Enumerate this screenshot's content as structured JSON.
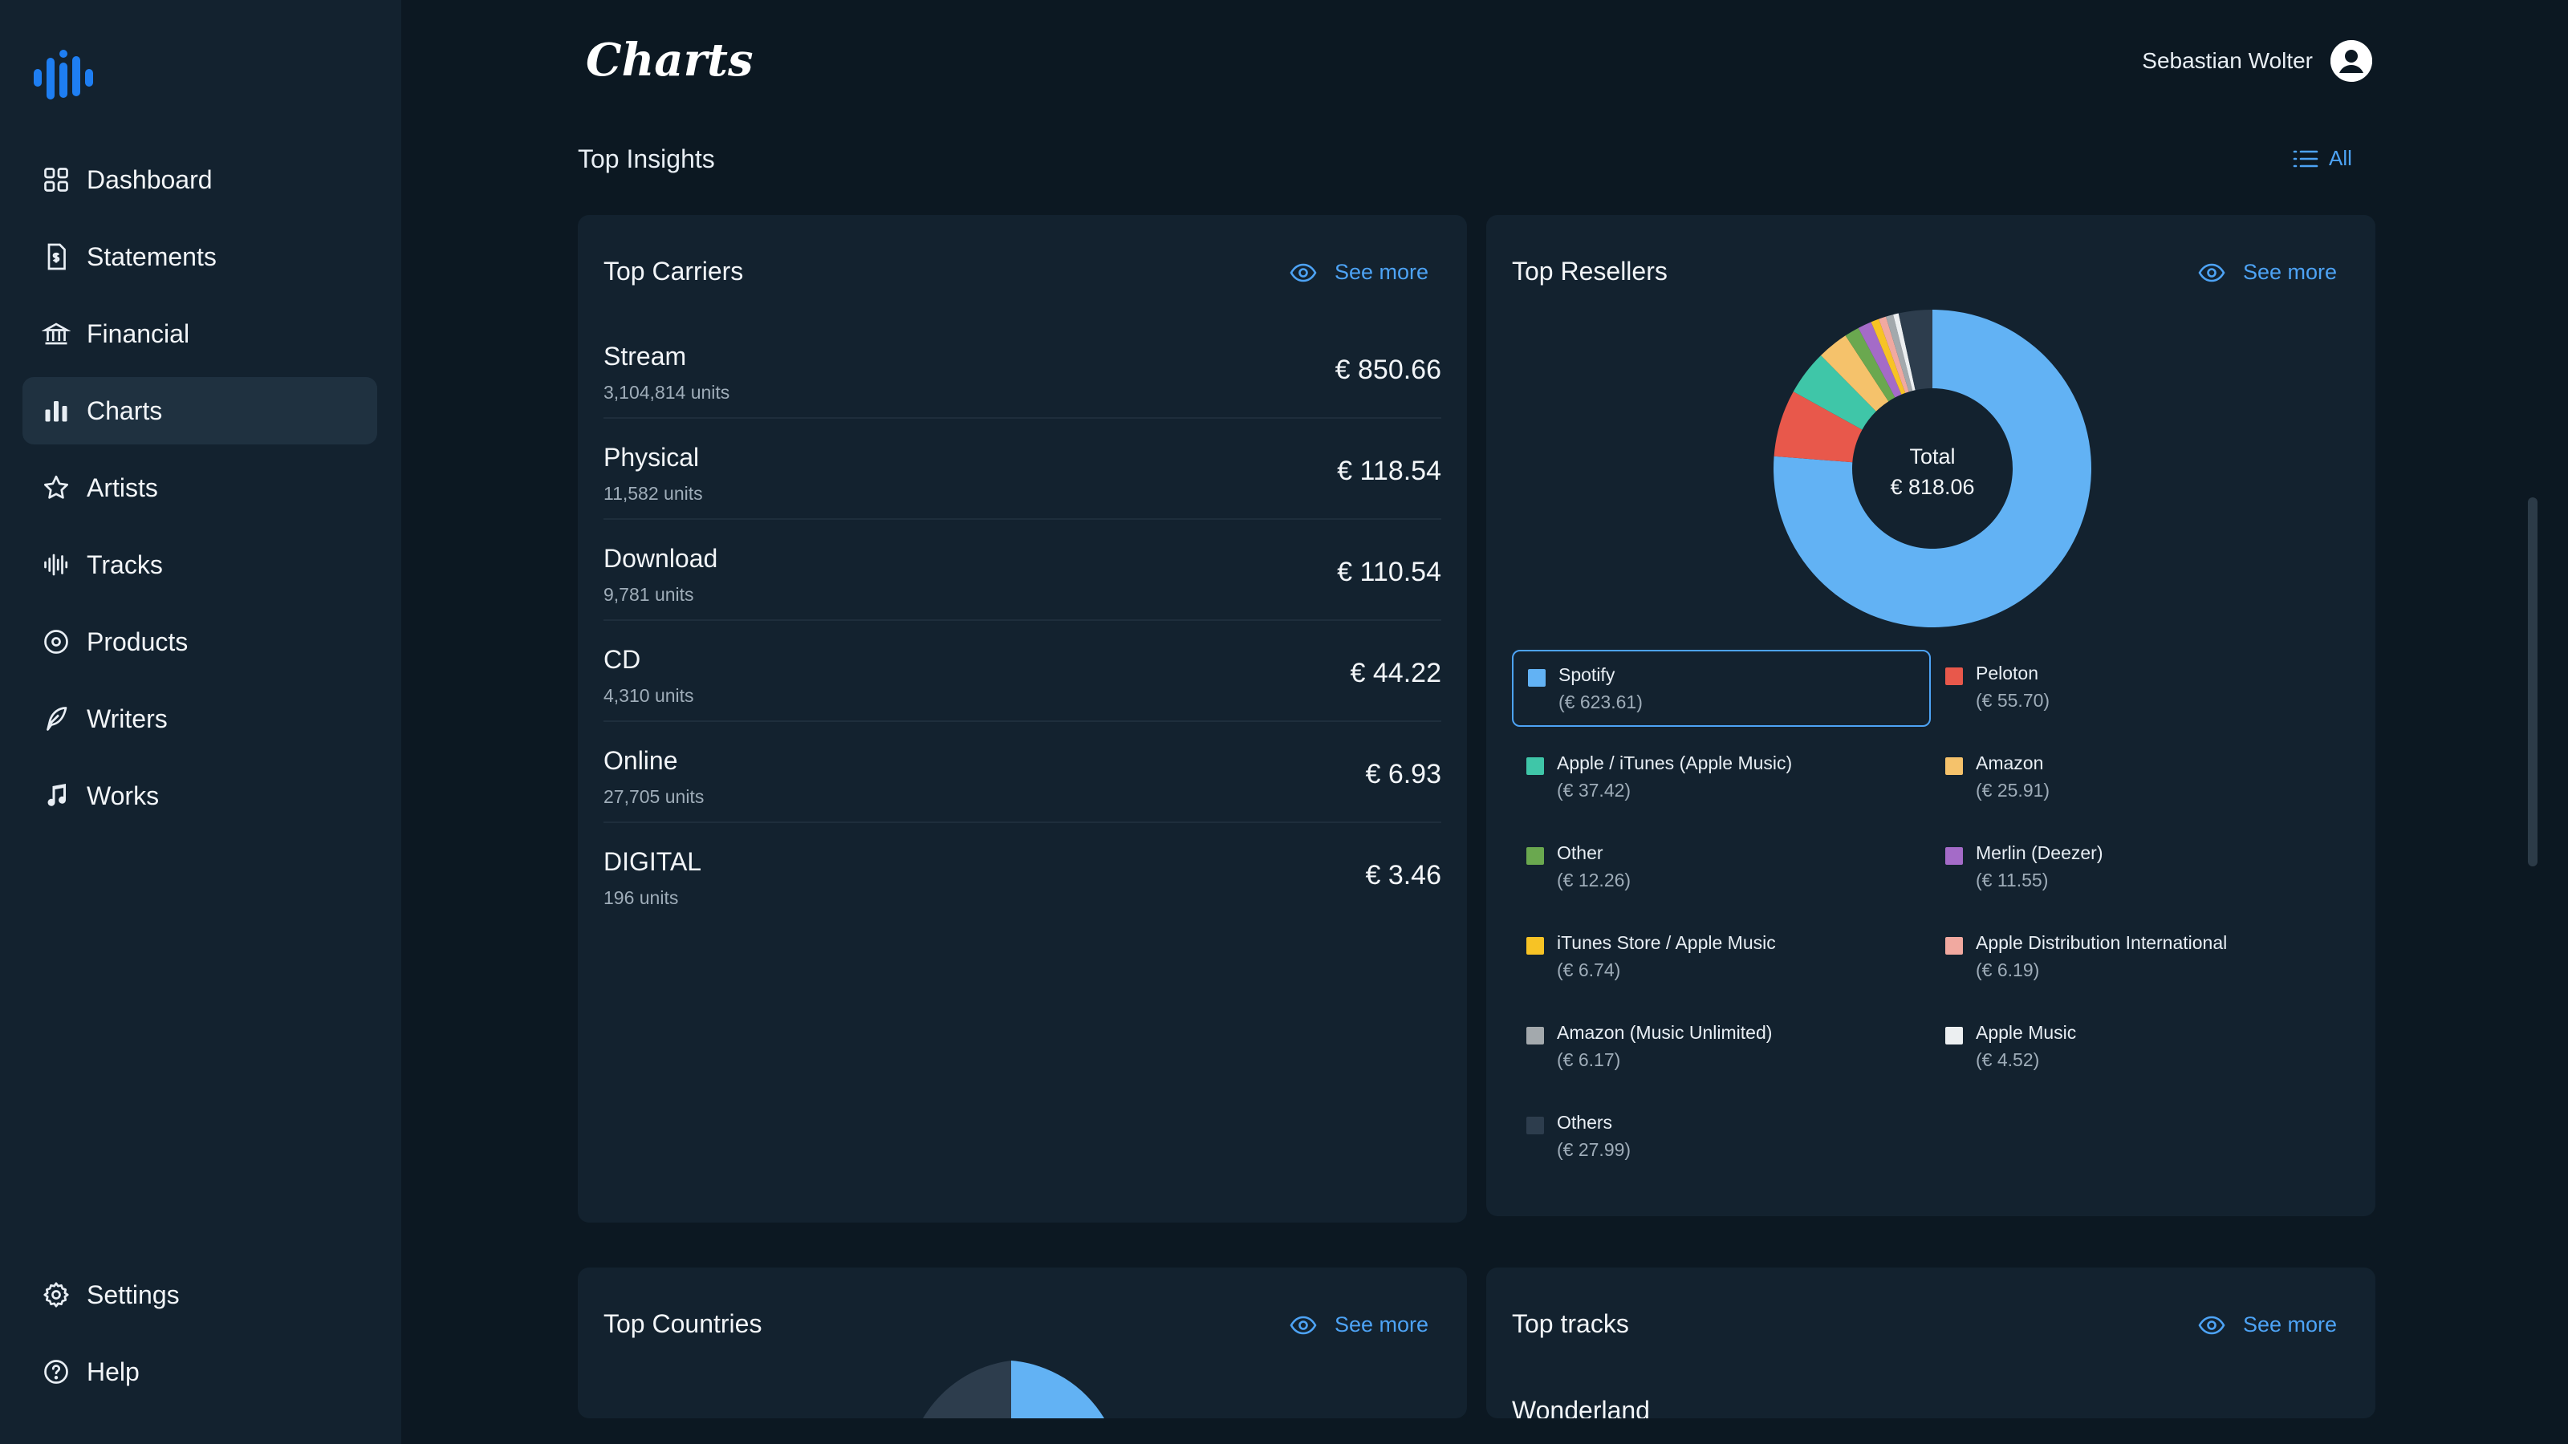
{
  "app": {
    "title": "Charts",
    "user_name": "Sebastian Wolter"
  },
  "sidebar": {
    "items": [
      {
        "label": "Dashboard",
        "icon": "dashboard-grid-icon"
      },
      {
        "label": "Statements",
        "icon": "statement-document-icon"
      },
      {
        "label": "Financial",
        "icon": "bank-icon"
      },
      {
        "label": "Charts",
        "icon": "bar-chart-icon",
        "active": true
      },
      {
        "label": "Artists",
        "icon": "star-icon"
      },
      {
        "label": "Tracks",
        "icon": "waveform-icon"
      },
      {
        "label": "Products",
        "icon": "disc-icon"
      },
      {
        "label": "Writers",
        "icon": "feather-icon"
      },
      {
        "label": "Works",
        "icon": "music-note-icon"
      }
    ],
    "bottom_items": [
      {
        "label": "Settings",
        "icon": "gear-icon"
      },
      {
        "label": "Help",
        "icon": "help-circle-icon"
      }
    ]
  },
  "main": {
    "section_title": "Top Insights",
    "all_label": "All",
    "see_more_label": "See more",
    "top_carriers": {
      "title": "Top Carriers",
      "rows": [
        {
          "name": "Stream",
          "units": "3,104,814 units",
          "amount": "€ 850.66"
        },
        {
          "name": "Physical",
          "units": "11,582 units",
          "amount": "€ 118.54"
        },
        {
          "name": "Download",
          "units": "9,781 units",
          "amount": "€ 110.54"
        },
        {
          "name": "CD",
          "units": "4,310 units",
          "amount": "€ 44.22"
        },
        {
          "name": "Online",
          "units": "27,705 units",
          "amount": "€ 6.93"
        },
        {
          "name": "DIGITAL",
          "units": "196 units",
          "amount": "€ 3.46"
        }
      ]
    },
    "top_resellers": {
      "title": "Top Resellers",
      "total_label": "Total",
      "total_value": "€ 818.06",
      "selected": "Spotify"
    },
    "top_countries": {
      "title": "Top Countries"
    },
    "top_tracks": {
      "title": "Top tracks",
      "first_track": "Wonderland"
    }
  },
  "chart_data": {
    "type": "pie",
    "variant": "donut",
    "title": "Top Resellers",
    "center_label": "Total",
    "center_value": "€ 818.06",
    "legend_placement": "bottom",
    "series": [
      {
        "name": "Spotify",
        "value": 623.61,
        "label": "(€ 623.61)",
        "color": "#62b2f4"
      },
      {
        "name": "Peloton",
        "value": 55.7,
        "label": "(€ 55.70)",
        "color": "#e8584b"
      },
      {
        "name": "Apple / iTunes (Apple Music)",
        "value": 37.42,
        "label": "(€ 37.42)",
        "color": "#3fc6a8"
      },
      {
        "name": "Amazon",
        "value": 25.91,
        "label": "(€ 25.91)",
        "color": "#f5c26b"
      },
      {
        "name": "Other",
        "value": 12.26,
        "label": "(€ 12.26)",
        "color": "#6aa84f"
      },
      {
        "name": "Merlin (Deezer)",
        "value": 11.55,
        "label": "(€ 11.55)",
        "color": "#a46bc8"
      },
      {
        "name": "iTunes Store / Apple Music",
        "value": 6.74,
        "label": "(€ 6.74)",
        "color": "#f7c325"
      },
      {
        "name": "Apple Distribution International",
        "value": 6.19,
        "label": "(€ 6.19)",
        "color": "#f1a9a0"
      },
      {
        "name": "Amazon (Music Unlimited)",
        "value": 6.17,
        "label": "(€ 6.17)",
        "color": "#a3a9ad"
      },
      {
        "name": "Apple Music",
        "value": 4.52,
        "label": "(€ 4.52)",
        "color": "#eceff1"
      },
      {
        "name": "Others",
        "value": 27.99,
        "label": "(€ 27.99)",
        "color": "#2d3d4d"
      }
    ]
  }
}
